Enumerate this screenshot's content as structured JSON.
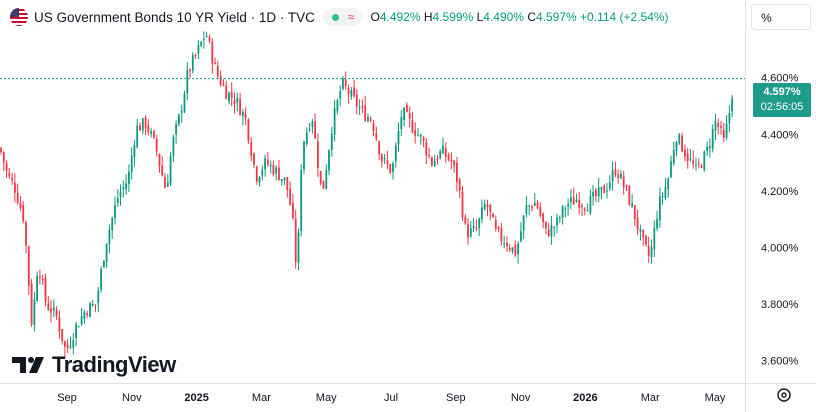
{
  "header": {
    "title": "US Government Bonds 10 YR Yield · 1D · TVC",
    "wave_glyph": "≈",
    "open_label": "O",
    "open": "4.492%",
    "high_label": "H",
    "high": "4.599%",
    "low_label": "L",
    "low": "4.490%",
    "close_label": "C",
    "close": "4.597%",
    "change": "+0.114 (+2.54%)"
  },
  "scale_mode": "%",
  "last_price_tag": {
    "value": "4.597%",
    "countdown": "02:56:05"
  },
  "brand": "TradingView",
  "colors": {
    "up": "#089981",
    "down": "#f23645",
    "price_line": "#1d9c89",
    "tag_bg": "#1d9c89"
  },
  "icons": [
    "us-flag-icon",
    "market-status-icon",
    "wave-icon",
    "tradingview-logo-icon",
    "settings-icon"
  ],
  "chart_data": {
    "type": "candlestick",
    "x_tick_labels": [
      "Sep",
      "Nov",
      "2025",
      "Mar",
      "May",
      "Jul",
      "Sep",
      "Nov",
      "2026",
      "Mar",
      "May"
    ],
    "y_tick_labels": [
      "4.800%",
      "4.600%",
      "4.400%",
      "4.200%",
      "4.000%",
      "3.800%",
      "3.600%"
    ],
    "y_ticks": [
      4.8,
      4.6,
      4.4,
      4.2,
      4.0,
      3.8,
      3.6
    ],
    "ylim": [
      3.52,
      4.875
    ],
    "last_close": 4.597,
    "grid": false,
    "close_series": [
      [
        0,
        4.35
      ],
      [
        8,
        4.25
      ],
      [
        14,
        4.22
      ],
      [
        24,
        4.1
      ],
      [
        32,
        3.72
      ],
      [
        38,
        3.95
      ],
      [
        46,
        3.8
      ],
      [
        56,
        3.76
      ],
      [
        66,
        3.63
      ],
      [
        76,
        3.72
      ],
      [
        86,
        3.78
      ],
      [
        96,
        3.8
      ],
      [
        106,
        4.02
      ],
      [
        118,
        4.18
      ],
      [
        128,
        4.24
      ],
      [
        136,
        4.42
      ],
      [
        146,
        4.44
      ],
      [
        156,
        4.35
      ],
      [
        166,
        4.2
      ],
      [
        172,
        4.36
      ],
      [
        180,
        4.47
      ],
      [
        188,
        4.62
      ],
      [
        196,
        4.68
      ],
      [
        206,
        4.76
      ],
      [
        216,
        4.62
      ],
      [
        226,
        4.55
      ],
      [
        236,
        4.52
      ],
      [
        246,
        4.45
      ],
      [
        256,
        4.25
      ],
      [
        266,
        4.3
      ],
      [
        276,
        4.27
      ],
      [
        286,
        4.23
      ],
      [
        292,
        4.12
      ],
      [
        297,
        3.9
      ],
      [
        302,
        4.36
      ],
      [
        312,
        4.47
      ],
      [
        322,
        4.18
      ],
      [
        332,
        4.43
      ],
      [
        342,
        4.58
      ],
      [
        352,
        4.53
      ],
      [
        362,
        4.48
      ],
      [
        372,
        4.45
      ],
      [
        382,
        4.31
      ],
      [
        392,
        4.27
      ],
      [
        402,
        4.48
      ],
      [
        412,
        4.43
      ],
      [
        422,
        4.38
      ],
      [
        432,
        4.3
      ],
      [
        442,
        4.34
      ],
      [
        452,
        4.3
      ],
      [
        458,
        4.23
      ],
      [
        466,
        4.05
      ],
      [
        476,
        4.06
      ],
      [
        486,
        4.16
      ],
      [
        496,
        4.05
      ],
      [
        506,
        4.02
      ],
      [
        516,
        3.98
      ],
      [
        526,
        4.14
      ],
      [
        536,
        4.16
      ],
      [
        546,
        4.05
      ],
      [
        556,
        4.08
      ],
      [
        566,
        4.15
      ],
      [
        576,
        4.17
      ],
      [
        586,
        4.15
      ],
      [
        596,
        4.18
      ],
      [
        606,
        4.21
      ],
      [
        616,
        4.28
      ],
      [
        626,
        4.2
      ],
      [
        634,
        4.12
      ],
      [
        642,
        4.02
      ],
      [
        650,
        3.96
      ],
      [
        658,
        4.14
      ],
      [
        668,
        4.24
      ],
      [
        676,
        4.4
      ],
      [
        686,
        4.33
      ],
      [
        696,
        4.27
      ],
      [
        706,
        4.33
      ],
      [
        716,
        4.45
      ],
      [
        724,
        4.37
      ],
      [
        730,
        4.49
      ],
      [
        734,
        4.597
      ]
    ]
  }
}
